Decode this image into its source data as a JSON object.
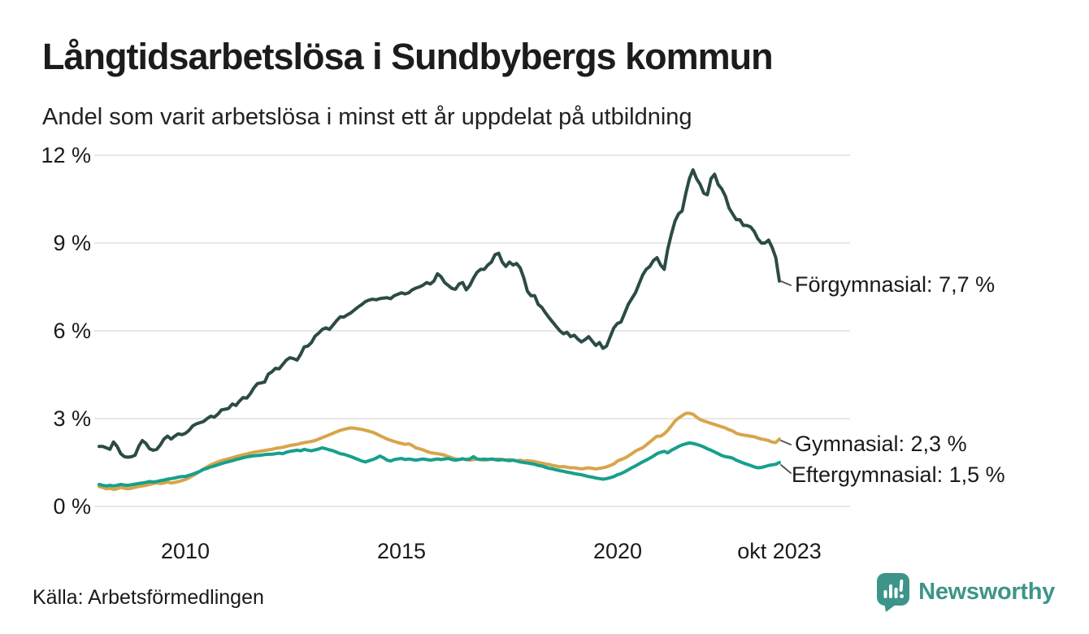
{
  "header": {
    "title": "Långtidsarbetslösa i Sundbybergs kommun",
    "subtitle": "Andel som varit arbetslösa i minst ett år uppdelat på utbildning"
  },
  "footer": {
    "source": "Källa: Arbetsförmedlingen",
    "logo_text": "Newsworthy",
    "logo_color": "#3d9489"
  },
  "colors": {
    "grid": "#e7e7e7",
    "text": "#1a1a1a",
    "connector": "#555555"
  },
  "annotations": [
    {
      "series": "Förgymnasial",
      "label": "Förgymnasial: 7,7 %",
      "value": 7.7
    },
    {
      "series": "Gymnasial",
      "label": "Gymnasial: 2,3 %",
      "value": 2.3
    },
    {
      "series": "Eftergymnasial",
      "label": "Eftergymnasial: 1,5 %",
      "value": 1.5
    }
  ],
  "chart_data": {
    "type": "line",
    "title": "Långtidsarbetslösa i Sundbybergs kommun",
    "subtitle": "Andel som varit arbetslösa i minst ett år uppdelat på utbildning",
    "unit": "%",
    "x_start": "2008-01",
    "x_end": "2023-10",
    "x_frequency": "monthly",
    "n_points": 190,
    "ylim": [
      0,
      12
    ],
    "grid": "horizontal",
    "legend_position": "right-annotations",
    "y_ticks": [
      {
        "label": "12 %",
        "value": 12
      },
      {
        "label": "9 %",
        "value": 9
      },
      {
        "label": "6 %",
        "value": 6
      },
      {
        "label": "3 %",
        "value": 3
      },
      {
        "label": "0 %",
        "value": 0
      }
    ],
    "x_ticks": [
      {
        "label": "2010",
        "month": 24
      },
      {
        "label": "2015",
        "month": 84
      },
      {
        "label": "2020",
        "month": 144
      },
      {
        "label": "okt 2023",
        "month": 189
      }
    ],
    "series": [
      {
        "name": "Förgymnasial",
        "color": "#2c4b47",
        "last_value_label": "7,7 %",
        "values": [
          2.05,
          2.05,
          2.0,
          1.95,
          2.2,
          2.05,
          1.8,
          1.7,
          1.68,
          1.7,
          1.75,
          2.05,
          2.25,
          2.15,
          1.97,
          1.92,
          1.95,
          2.1,
          2.3,
          2.4,
          2.3,
          2.4,
          2.48,
          2.45,
          2.5,
          2.6,
          2.75,
          2.82,
          2.86,
          2.9,
          3.0,
          3.08,
          3.05,
          3.15,
          3.3,
          3.32,
          3.35,
          3.5,
          3.45,
          3.6,
          3.72,
          3.7,
          3.85,
          4.05,
          4.2,
          4.22,
          4.25,
          4.52,
          4.6,
          4.72,
          4.7,
          4.85,
          5.0,
          5.08,
          5.05,
          5.0,
          5.2,
          5.45,
          5.48,
          5.6,
          5.82,
          5.92,
          6.05,
          6.1,
          6.05,
          6.2,
          6.35,
          6.48,
          6.47,
          6.55,
          6.62,
          6.72,
          6.82,
          6.9,
          7.0,
          7.05,
          7.08,
          7.06,
          7.1,
          7.12,
          7.13,
          7.1,
          7.2,
          7.25,
          7.3,
          7.26,
          7.3,
          7.4,
          7.46,
          7.5,
          7.56,
          7.65,
          7.6,
          7.7,
          7.95,
          7.85,
          7.65,
          7.55,
          7.45,
          7.42,
          7.6,
          7.65,
          7.4,
          7.55,
          7.8,
          8.0,
          8.1,
          8.1,
          8.25,
          8.35,
          8.6,
          8.65,
          8.35,
          8.2,
          8.35,
          8.25,
          8.3,
          8.15,
          7.8,
          7.35,
          7.2,
          7.2,
          6.9,
          6.8,
          6.62,
          6.45,
          6.3,
          6.15,
          6.0,
          5.9,
          5.95,
          5.8,
          5.85,
          5.72,
          5.62,
          5.7,
          5.8,
          5.65,
          5.5,
          5.6,
          5.4,
          5.48,
          5.8,
          6.1,
          6.25,
          6.3,
          6.6,
          6.9,
          7.1,
          7.3,
          7.6,
          7.9,
          8.1,
          8.2,
          8.4,
          8.5,
          8.25,
          8.1,
          8.8,
          9.3,
          9.75,
          10.0,
          10.1,
          10.7,
          11.2,
          11.5,
          11.2,
          11.0,
          10.7,
          10.65,
          11.2,
          11.35,
          11.0,
          10.85,
          10.6,
          10.2,
          10.0,
          9.8,
          9.8,
          9.6,
          9.6,
          9.55,
          9.4,
          9.15,
          9.0,
          9.0,
          9.1,
          8.85,
          8.5,
          7.7
        ]
      },
      {
        "name": "Gymnasial",
        "color": "#d7a54b",
        "last_value_label": "2,3 %",
        "values": [
          0.68,
          0.65,
          0.6,
          0.62,
          0.58,
          0.6,
          0.65,
          0.62,
          0.6,
          0.62,
          0.65,
          0.68,
          0.7,
          0.72,
          0.75,
          0.78,
          0.8,
          0.78,
          0.8,
          0.83,
          0.8,
          0.82,
          0.85,
          0.88,
          0.92,
          0.98,
          1.05,
          1.12,
          1.2,
          1.28,
          1.35,
          1.42,
          1.47,
          1.52,
          1.56,
          1.6,
          1.63,
          1.66,
          1.7,
          1.73,
          1.76,
          1.79,
          1.82,
          1.85,
          1.87,
          1.89,
          1.91,
          1.93,
          1.95,
          1.98,
          2.0,
          2.02,
          2.05,
          2.08,
          2.1,
          2.12,
          2.15,
          2.18,
          2.2,
          2.22,
          2.25,
          2.3,
          2.35,
          2.4,
          2.45,
          2.5,
          2.55,
          2.6,
          2.63,
          2.66,
          2.68,
          2.67,
          2.65,
          2.63,
          2.6,
          2.57,
          2.53,
          2.48,
          2.42,
          2.36,
          2.3,
          2.26,
          2.22,
          2.18,
          2.15,
          2.12,
          2.14,
          2.08,
          2.0,
          1.97,
          1.93,
          1.88,
          1.84,
          1.82,
          1.8,
          1.78,
          1.75,
          1.7,
          1.66,
          1.62,
          1.6,
          1.62,
          1.6,
          1.58,
          1.6,
          1.62,
          1.6,
          1.58,
          1.6,
          1.62,
          1.6,
          1.62,
          1.6,
          1.58,
          1.6,
          1.58,
          1.56,
          1.58,
          1.55,
          1.56,
          1.55,
          1.53,
          1.5,
          1.48,
          1.45,
          1.43,
          1.4,
          1.38,
          1.35,
          1.36,
          1.34,
          1.32,
          1.32,
          1.3,
          1.28,
          1.3,
          1.32,
          1.3,
          1.28,
          1.3,
          1.32,
          1.35,
          1.4,
          1.45,
          1.55,
          1.6,
          1.65,
          1.72,
          1.8,
          1.89,
          1.95,
          2.0,
          2.1,
          2.2,
          2.3,
          2.4,
          2.4,
          2.48,
          2.6,
          2.75,
          2.92,
          3.02,
          3.1,
          3.18,
          3.18,
          3.15,
          3.05,
          2.97,
          2.92,
          2.88,
          2.84,
          2.8,
          2.76,
          2.72,
          2.68,
          2.62,
          2.58,
          2.5,
          2.46,
          2.44,
          2.42,
          2.4,
          2.38,
          2.34,
          2.3,
          2.28,
          2.25,
          2.2,
          2.18,
          2.3
        ]
      },
      {
        "name": "Eftergymnasial",
        "color": "#17a08c",
        "last_value_label": "1,5 %",
        "values": [
          0.75,
          0.72,
          0.7,
          0.72,
          0.7,
          0.72,
          0.75,
          0.73,
          0.72,
          0.74,
          0.76,
          0.78,
          0.8,
          0.82,
          0.85,
          0.83,
          0.85,
          0.88,
          0.9,
          0.93,
          0.95,
          0.97,
          1.0,
          1.02,
          1.02,
          1.06,
          1.1,
          1.15,
          1.2,
          1.26,
          1.3,
          1.35,
          1.38,
          1.42,
          1.46,
          1.5,
          1.53,
          1.56,
          1.6,
          1.63,
          1.66,
          1.69,
          1.71,
          1.73,
          1.74,
          1.75,
          1.77,
          1.78,
          1.78,
          1.8,
          1.82,
          1.8,
          1.85,
          1.88,
          1.9,
          1.92,
          1.9,
          1.95,
          1.92,
          1.9,
          1.93,
          1.96,
          2.0,
          1.97,
          1.93,
          1.9,
          1.85,
          1.8,
          1.78,
          1.74,
          1.7,
          1.65,
          1.6,
          1.55,
          1.52,
          1.56,
          1.6,
          1.65,
          1.72,
          1.66,
          1.58,
          1.55,
          1.6,
          1.62,
          1.64,
          1.6,
          1.62,
          1.6,
          1.58,
          1.6,
          1.62,
          1.6,
          1.58,
          1.6,
          1.62,
          1.6,
          1.62,
          1.64,
          1.6,
          1.58,
          1.6,
          1.63,
          1.6,
          1.62,
          1.7,
          1.62,
          1.6,
          1.62,
          1.6,
          1.62,
          1.6,
          1.58,
          1.6,
          1.58,
          1.56,
          1.58,
          1.55,
          1.52,
          1.5,
          1.48,
          1.46,
          1.44,
          1.4,
          1.38,
          1.34,
          1.3,
          1.28,
          1.25,
          1.22,
          1.2,
          1.17,
          1.15,
          1.12,
          1.1,
          1.08,
          1.05,
          1.02,
          1.0,
          0.97,
          0.95,
          0.93,
          0.95,
          0.98,
          1.02,
          1.08,
          1.12,
          1.18,
          1.25,
          1.32,
          1.38,
          1.45,
          1.52,
          1.58,
          1.65,
          1.72,
          1.8,
          1.85,
          1.88,
          1.83,
          1.92,
          1.98,
          2.05,
          2.1,
          2.14,
          2.17,
          2.15,
          2.12,
          2.08,
          2.03,
          1.97,
          1.92,
          1.86,
          1.8,
          1.74,
          1.7,
          1.68,
          1.65,
          1.58,
          1.53,
          1.48,
          1.44,
          1.4,
          1.35,
          1.32,
          1.33,
          1.36,
          1.4,
          1.42,
          1.44,
          1.5
        ]
      }
    ]
  }
}
